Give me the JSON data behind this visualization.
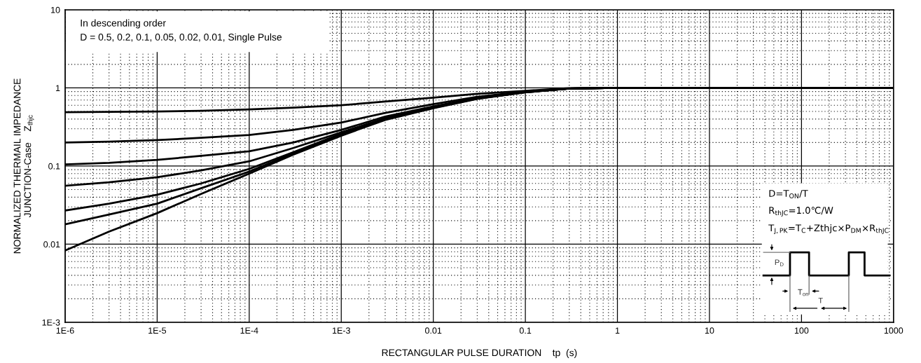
{
  "chart_data": {
    "type": "line",
    "xlabel": "RECTANGULAR PULSE DURATION    tp  (s)",
    "ylabel": "NORMALIZED THERMAIL IMPEDANCE\nJUNCTION-Case    Z$_{thjc}$",
    "annotations": [
      "In descending order",
      "D = 0.5, 0.2, 0.1, 0.05, 0.02, 0.01, Single Pulse",
      "D=T$_{ON}$/T",
      "R$_{thJC}$=1.0℃/W",
      "T$_{J,PK}$=T$_{C}$+Zthjc×P$_{DM}$×R$_{thJC}$",
      "P$_{D}$",
      "T$_{on}$",
      "T"
    ],
    "x": [
      1e-06,
      3e-06,
      1e-05,
      3e-05,
      0.0001,
      0.0003,
      0.001,
      0.003,
      0.01,
      0.03,
      0.1,
      0.3,
      1,
      10,
      100,
      1000
    ],
    "series": [
      {
        "color": "#000000",
        "values": [
          0.49,
          0.495,
          0.5,
          0.51,
          0.53,
          0.56,
          0.6,
          0.67,
          0.75,
          0.84,
          0.92,
          0.99,
          1.0,
          1.0,
          1.0,
          1.0
        ]
      },
      {
        "color": "#000000",
        "values": [
          0.2,
          0.205,
          0.215,
          0.23,
          0.25,
          0.29,
          0.36,
          0.48,
          0.62,
          0.77,
          0.9,
          0.98,
          1.0,
          1.0,
          1.0,
          1.0
        ]
      },
      {
        "color": "#000000",
        "values": [
          0.105,
          0.11,
          0.12,
          0.135,
          0.155,
          0.2,
          0.29,
          0.43,
          0.58,
          0.75,
          0.89,
          0.98,
          1.0,
          1.0,
          1.0,
          1.0
        ]
      },
      {
        "color": "#000000",
        "values": [
          0.056,
          0.062,
          0.072,
          0.088,
          0.115,
          0.17,
          0.27,
          0.41,
          0.57,
          0.74,
          0.885,
          0.98,
          1.0,
          1.0,
          1.0,
          1.0
        ]
      },
      {
        "color": "#000000",
        "values": [
          0.027,
          0.033,
          0.043,
          0.06,
          0.092,
          0.15,
          0.26,
          0.4,
          0.56,
          0.73,
          0.88,
          0.98,
          1.0,
          1.0,
          1.0,
          1.0
        ]
      },
      {
        "color": "#000000",
        "values": [
          0.018,
          0.024,
          0.033,
          0.052,
          0.085,
          0.145,
          0.25,
          0.395,
          0.555,
          0.73,
          0.88,
          0.98,
          1.0,
          1.0,
          1.0,
          1.0
        ]
      },
      {
        "color": "#000000",
        "values": [
          0.0083,
          0.0145,
          0.025,
          0.044,
          0.08,
          0.14,
          0.245,
          0.39,
          0.55,
          0.725,
          0.88,
          0.98,
          1.0,
          1.0,
          1.0,
          1.0
        ]
      }
    ],
    "log": "xy",
    "xlim": [
      1e-06,
      1000
    ],
    "xticks": [
      {
        "value": 1e-06,
        "label": "1E-6"
      },
      {
        "value": 1e-05,
        "label": "1E-5"
      },
      {
        "value": 0.0001,
        "label": "1E-4"
      },
      {
        "value": 0.001,
        "label": "1E-3"
      },
      0.01,
      0.1,
      1,
      10,
      100,
      1000
    ],
    "ylim": [
      0.001,
      10
    ],
    "yticks": [
      {
        "value": 0.001,
        "label": "1E-3"
      },
      0.01,
      0.1,
      1,
      10
    ],
    "grid": true,
    "marker": "none",
    "line_style": "solid"
  }
}
